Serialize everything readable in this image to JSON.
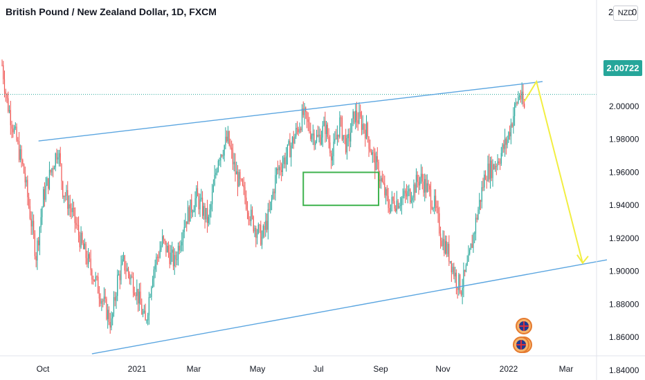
{
  "chart_data": {
    "type": "candlestick",
    "title": "British Pound / New Zealand Dollar, 1D, FXCM",
    "currency": "NZD",
    "last_price": "2.00722",
    "ylim": [
      1.83,
      2.035
    ],
    "y_ticks": [
      "2.02000",
      "2.00000",
      "1.98000",
      "1.96000",
      "1.94000",
      "1.92000",
      "1.90000",
      "1.88000",
      "1.86000",
      "1.84000"
    ],
    "x_ticks": [
      "Oct",
      "2021",
      "Mar",
      "May",
      "Jul",
      "Sep",
      "Nov",
      "2022",
      "Mar"
    ],
    "price_path": [
      [
        0,
        2.025
      ],
      [
        4,
        2.003
      ],
      [
        10,
        1.985
      ],
      [
        18,
        1.96
      ],
      [
        24,
        1.93
      ],
      [
        28,
        1.91
      ],
      [
        34,
        1.945
      ],
      [
        40,
        1.96
      ],
      [
        46,
        1.975
      ],
      [
        50,
        1.95
      ],
      [
        58,
        1.935
      ],
      [
        66,
        1.915
      ],
      [
        74,
        1.9
      ],
      [
        84,
        1.88
      ],
      [
        90,
        1.868
      ],
      [
        95,
        1.895
      ],
      [
        100,
        1.905
      ],
      [
        110,
        1.89
      ],
      [
        118,
        1.868
      ],
      [
        124,
        1.9
      ],
      [
        132,
        1.918
      ],
      [
        142,
        1.905
      ],
      [
        150,
        1.93
      ],
      [
        160,
        1.945
      ],
      [
        170,
        1.93
      ],
      [
        178,
        1.97
      ],
      [
        186,
        1.98
      ],
      [
        192,
        1.96
      ],
      [
        200,
        1.945
      ],
      [
        206,
        1.93
      ],
      [
        214,
        1.92
      ],
      [
        220,
        1.935
      ],
      [
        226,
        1.96
      ],
      [
        234,
        1.97
      ],
      [
        240,
        1.98
      ],
      [
        248,
        1.995
      ],
      [
        254,
        1.985
      ],
      [
        260,
        1.98
      ],
      [
        266,
        1.988
      ],
      [
        272,
        1.97
      ],
      [
        278,
        1.99
      ],
      [
        284,
        1.975
      ],
      [
        290,
        1.995
      ],
      [
        296,
        1.99
      ],
      [
        300,
        1.985
      ],
      [
        305,
        1.97
      ],
      [
        310,
        1.96
      ],
      [
        318,
        1.94
      ],
      [
        326,
        1.943
      ],
      [
        336,
        1.947
      ],
      [
        344,
        1.957
      ],
      [
        350,
        1.95
      ],
      [
        356,
        1.94
      ],
      [
        362,
        1.92
      ],
      [
        368,
        1.91
      ],
      [
        374,
        1.895
      ],
      [
        378,
        1.89
      ],
      [
        384,
        1.905
      ],
      [
        390,
        1.93
      ],
      [
        398,
        1.96
      ],
      [
        404,
        1.963
      ],
      [
        410,
        1.97
      ],
      [
        416,
        1.98
      ],
      [
        422,
        1.998
      ],
      [
        426,
        2.008
      ],
      [
        430,
        1.998
      ]
    ],
    "bars_total": 430,
    "channel": {
      "upper": [
        [
          30,
          1.979
        ],
        [
          445,
          2.015
        ]
      ],
      "lower": [
        [
          74,
          1.85
        ],
        [
          498,
          1.907
        ]
      ]
    },
    "rectangle": {
      "x0": 248,
      "x1": 310,
      "y0": 1.96,
      "y1": 1.94
    },
    "projection": [
      [
        430,
        2.003
      ],
      [
        440,
        2.015
      ],
      [
        478,
        1.905
      ]
    ],
    "series_colors": {
      "up": "#26a69a",
      "down": "#ef5350"
    },
    "channel_color": "#5aa5e0",
    "rectangle_color": "#3db24d",
    "projection_color": "#f2ee41"
  }
}
